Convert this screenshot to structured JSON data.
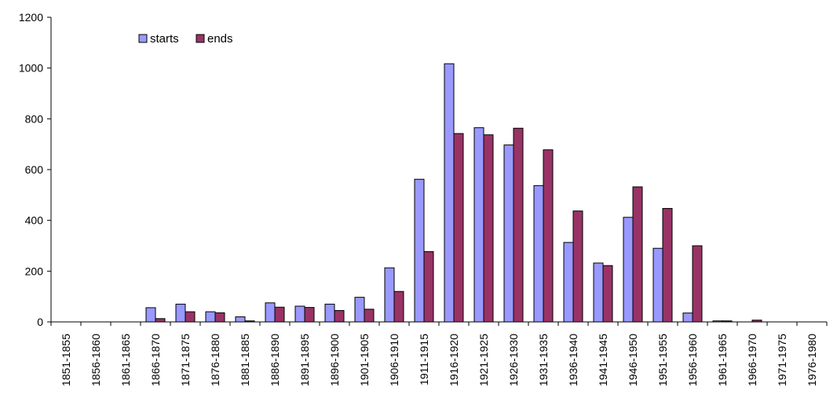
{
  "chart_data": {
    "type": "bar",
    "categories": [
      "1851-1855",
      "1856-1860",
      "1861-1865",
      "1866-1870",
      "1871-1875",
      "1876-1880",
      "1881-1885",
      "1886-1890",
      "1891-1895",
      "1896-1900",
      "1901-1905",
      "1906-1910",
      "1911-1915",
      "1916-1920",
      "1921-1925",
      "1926-1930",
      "1931-1935",
      "1936-1940",
      "1941-1945",
      "1946-1950",
      "1951-1955",
      "1956-1960",
      "1961-1965",
      "1966-1970",
      "1971-1975",
      "1976-1980"
    ],
    "series": [
      {
        "name": "starts",
        "color": "#9999ff",
        "values": [
          0,
          0,
          0,
          56,
          70,
          40,
          20,
          75,
          62,
          70,
          97,
          213,
          562,
          1017,
          765,
          697,
          537,
          313,
          232,
          412,
          290,
          35,
          4,
          0,
          0,
          0
        ]
      },
      {
        "name": "ends",
        "color": "#993366",
        "values": [
          0,
          0,
          0,
          13,
          40,
          36,
          4,
          58,
          57,
          45,
          50,
          120,
          277,
          742,
          737,
          763,
          678,
          437,
          222,
          532,
          447,
          300,
          4,
          7,
          0,
          0
        ]
      }
    ],
    "ylim": [
      0,
      1200
    ],
    "yticks": [
      0,
      200,
      400,
      600,
      800,
      1000,
      1200
    ],
    "title": "",
    "xlabel": "",
    "ylabel": "",
    "grid": false,
    "legend": "top-left"
  }
}
